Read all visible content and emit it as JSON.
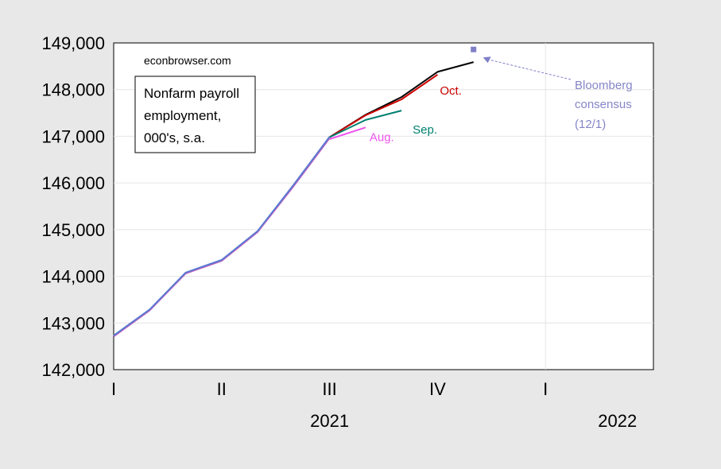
{
  "source_text": "econbrowser.com",
  "note_lines": [
    "Nonfarm payroll",
    "employment,",
    "000's, s.a."
  ],
  "chart_data": {
    "type": "line",
    "title": "",
    "xlabel": "",
    "ylabel": "",
    "ylim": [
      142000,
      149000
    ],
    "y_ticks": [
      142000,
      143000,
      144000,
      145000,
      146000,
      147000,
      148000,
      149000
    ],
    "y_tick_labels": [
      "142,000",
      "143,000",
      "144,000",
      "145,000",
      "146,000",
      "147,000",
      "148,000",
      "149,000"
    ],
    "x_months": [
      "2021-01",
      "2021-02",
      "2021-03",
      "2021-04",
      "2021-05",
      "2021-06",
      "2021-07",
      "2021-08",
      "2021-09",
      "2021-10",
      "2021-11",
      "2021-12",
      "2022-01",
      "2022-02",
      "2022-03"
    ],
    "quarter_ticks": [
      {
        "month": "2021-01",
        "label": "I"
      },
      {
        "month": "2021-04",
        "label": "II"
      },
      {
        "month": "2021-07",
        "label": "III"
      },
      {
        "month": "2021-10",
        "label": "IV"
      },
      {
        "month": "2022-01",
        "label": "I"
      }
    ],
    "year_labels": [
      {
        "month": "2021-07",
        "label": "2021"
      },
      {
        "month": "2022-03",
        "label": "2022"
      }
    ],
    "grid": true,
    "series": [
      {
        "name": "",
        "color": "#000000",
        "width": 2,
        "x": [
          "2021-07",
          "2021-08",
          "2021-09",
          "2021-10",
          "2021-11"
        ],
        "values": [
          146980,
          147460,
          147840,
          148380,
          148590
        ]
      },
      {
        "name": "Oct.",
        "color": "#cc0000",
        "width": 2,
        "x": [
          "2021-07",
          "2021-08",
          "2021-09",
          "2021-10"
        ],
        "values": [
          146980,
          147450,
          147790,
          148320
        ]
      },
      {
        "name": "Sep.",
        "color": "#008070",
        "width": 2,
        "x": [
          "2021-07",
          "2021-08",
          "2021-09"
        ],
        "values": [
          146980,
          147350,
          147550
        ]
      },
      {
        "name": "Aug.",
        "color": "#ee55ee",
        "width": 2,
        "x": [
          "2021-07",
          "2021-08"
        ],
        "values": [
          146940,
          147190
        ]
      },
      {
        "name": "",
        "color": "#c060c0",
        "width": 2,
        "x": [
          "2021-01",
          "2021-02",
          "2021-03",
          "2021-04",
          "2021-05",
          "2021-06",
          "2021-07"
        ],
        "values": [
          142710,
          143270,
          144060,
          144330,
          144950,
          145930,
          146960
        ]
      },
      {
        "name": "",
        "color": "#5a7ad0",
        "width": 2,
        "x": [
          "2021-01",
          "2021-02",
          "2021-03",
          "2021-04",
          "2021-05",
          "2021-06",
          "2021-07"
        ],
        "values": [
          142730,
          143290,
          144080,
          144350,
          144970,
          145960,
          146990
        ]
      }
    ],
    "series_labels": [
      {
        "series_index": 1,
        "text": "Oct.",
        "color": "#cc0000"
      },
      {
        "series_index": 2,
        "text": "Sep.",
        "color": "#008070"
      },
      {
        "series_index": 3,
        "text": "Aug.",
        "color": "#ee55ee"
      }
    ],
    "consensus_point": {
      "x": "2021-11",
      "value": 148860,
      "color": "#8080c8"
    },
    "annotation": {
      "lines": [
        "Bloomberg",
        "consensus",
        "(12/1)"
      ],
      "color": "#8080c8"
    }
  }
}
